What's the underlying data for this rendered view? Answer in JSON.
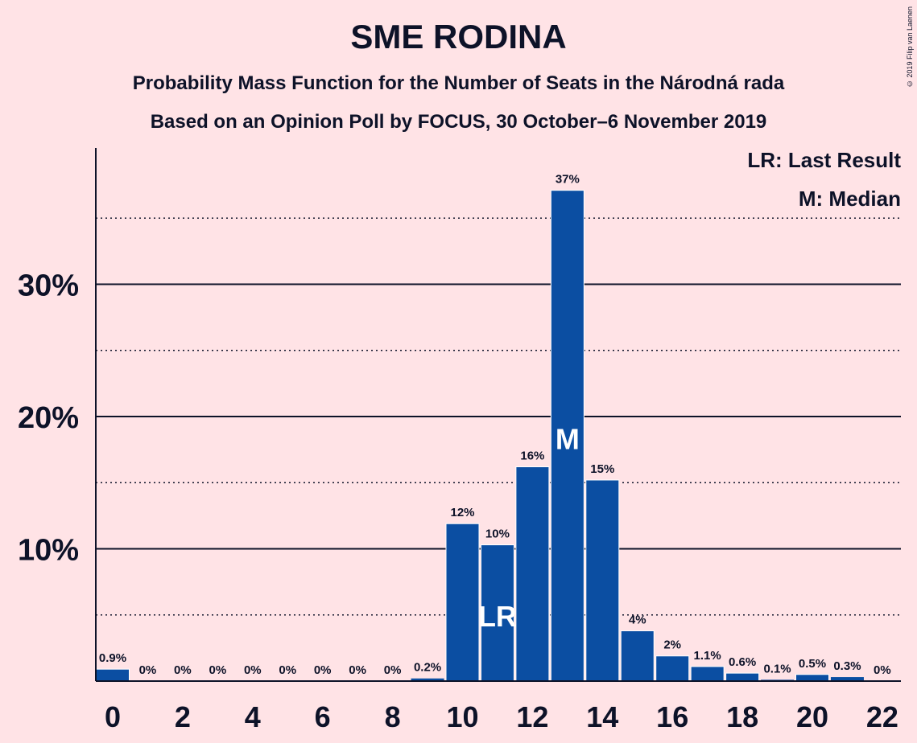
{
  "chart_data": {
    "type": "bar",
    "title": "SME RODINA",
    "subtitle": "Probability Mass Function for the Number of Seats in the Národná rada",
    "subtitle2": "Based on an Opinion Poll by FOCUS, 30 October–6 November 2019",
    "copyright": "© 2019 Filip van Laenen",
    "legend": [
      "LR: Last Result",
      "M: Median"
    ],
    "legend_position": "top-right",
    "categories": [
      0,
      1,
      2,
      3,
      4,
      5,
      6,
      7,
      8,
      9,
      10,
      11,
      12,
      13,
      14,
      15,
      16,
      17,
      18,
      19,
      20,
      21,
      22
    ],
    "values": [
      0.9,
      0,
      0,
      0,
      0,
      0,
      0,
      0,
      0,
      0.2,
      11.9,
      10.3,
      16.2,
      37.1,
      15.2,
      3.8,
      1.9,
      1.1,
      0.6,
      0.1,
      0.5,
      0.3,
      0
    ],
    "labels": [
      "0.9%",
      "0%",
      "0%",
      "0%",
      "0%",
      "0%",
      "0%",
      "0%",
      "0%",
      "0.2%",
      "12%",
      "10%",
      "16%",
      "37%",
      "15%",
      "4%",
      "2%",
      "1.1%",
      "0.6%",
      "0.1%",
      "0.5%",
      "0.3%",
      "0%"
    ],
    "markers": [
      {
        "index": 11,
        "text": "LR"
      },
      {
        "index": 13,
        "text": "M"
      }
    ],
    "x_tick_labels": [
      "0",
      "2",
      "4",
      "6",
      "8",
      "10",
      "12",
      "14",
      "16",
      "18",
      "20",
      "22"
    ],
    "y_ticks": [
      10,
      20,
      30
    ],
    "y_tick_labels": [
      "10%",
      "20%",
      "30%"
    ],
    "y_minor_ticks": [
      5,
      15,
      25,
      35
    ],
    "ylim": [
      0,
      40
    ],
    "grid": true,
    "bar_color": "#0b4ea2",
    "text_color": "#0d1228",
    "background": "#ffe3e6"
  }
}
